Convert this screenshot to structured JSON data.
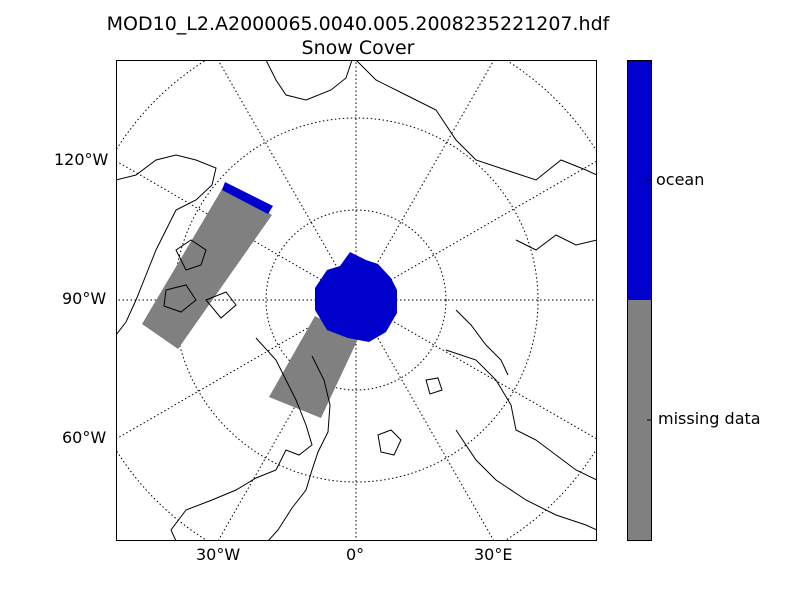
{
  "title": {
    "line1": "MOD10_L2.A2000065.0040.005.2008235221207.hdf",
    "line2": "Snow Cover"
  },
  "map": {
    "projection": "north polar stereographic",
    "graticule": "dotted",
    "coastline_color": "#000000",
    "y_ticks": [
      "120°W",
      "90°W",
      "60°W"
    ],
    "x_ticks": [
      "30°W",
      "0°",
      "30°E"
    ]
  },
  "colorbar": {
    "categories": [
      {
        "label": "ocean",
        "color": "#0000cc"
      },
      {
        "label": "missing data",
        "color": "#808080"
      }
    ]
  }
}
